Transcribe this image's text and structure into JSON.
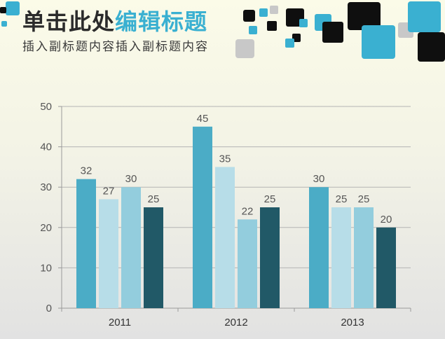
{
  "header": {
    "title_part1": "单击此处",
    "title_part2": "编辑标题",
    "subtitle": "插入副标题内容插入副标题内容"
  },
  "colors": {
    "accent": "#3ab0d1",
    "dark_square": "#0f0f0f",
    "grey_square": "#c8c8c8"
  },
  "chart_data": {
    "type": "bar",
    "categories": [
      "2011",
      "2012",
      "2013"
    ],
    "series": [
      {
        "values": [
          32,
          45,
          30
        ],
        "color": "#4bacc6"
      },
      {
        "values": [
          27,
          35,
          25
        ],
        "color": "#b7dde8"
      },
      {
        "values": [
          30,
          22,
          25
        ],
        "color": "#93cddd"
      },
      {
        "values": [
          25,
          25,
          20
        ],
        "color": "#215967"
      }
    ],
    "ylim": [
      0,
      50
    ],
    "yticks": [
      0,
      10,
      20,
      30,
      40,
      50
    ],
    "grid": true,
    "data_labels": true,
    "title": "",
    "xlabel": "",
    "ylabel": ""
  }
}
